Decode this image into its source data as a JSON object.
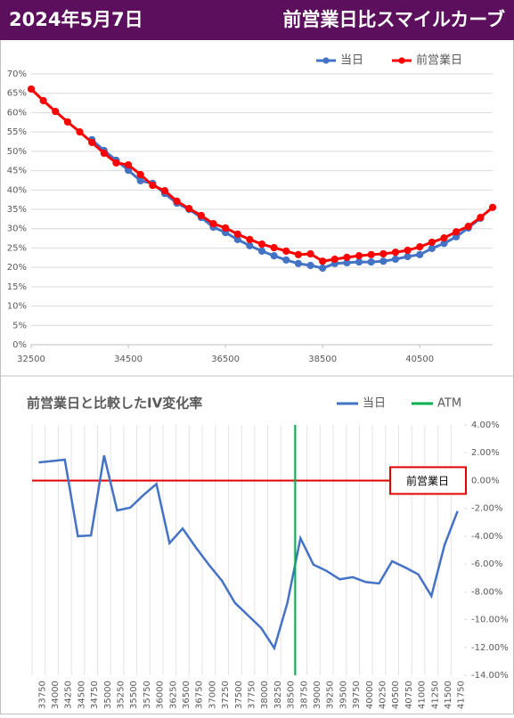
{
  "header": {
    "date": "2024年5月7日",
    "title": "前営業日比スマイルカーブ"
  },
  "chart_data": [
    {
      "type": "line",
      "markers": true,
      "grid": true,
      "x": [
        32500,
        32750,
        33000,
        33250,
        33500,
        33750,
        34000,
        34250,
        34500,
        34750,
        35000,
        35250,
        35500,
        35750,
        36000,
        36250,
        36500,
        36750,
        37000,
        37250,
        37500,
        37750,
        38000,
        38250,
        38500,
        38750,
        39000,
        39250,
        39500,
        39750,
        40000,
        40250,
        40500,
        40750,
        41000,
        41250,
        41500,
        41750,
        42000
      ],
      "series": [
        {
          "name": "当日",
          "color": "#4472c4",
          "values": [
            null,
            null,
            null,
            null,
            null,
            53.0,
            50.2,
            47.7,
            45.1,
            42.4,
            41.7,
            39.1,
            36.6,
            35.0,
            32.9,
            30.4,
            29.0,
            27.2,
            25.6,
            24.2,
            23.0,
            21.9,
            21.0,
            20.5,
            19.8,
            21.0,
            21.2,
            21.4,
            21.4,
            21.6,
            22.1,
            22.8,
            23.3,
            24.9,
            26.2,
            27.9,
            30.2,
            32.7,
            null
          ]
        },
        {
          "name": "前営業日",
          "color": "#ff0000",
          "values": [
            66.1,
            63.1,
            60.3,
            57.6,
            55.0,
            52.3,
            49.5,
            47.0,
            46.5,
            44.0,
            41.2,
            39.8,
            37.1,
            35.2,
            33.4,
            31.3,
            30.2,
            28.6,
            27.2,
            26.0,
            25.1,
            24.2,
            23.3,
            23.5,
            21.6,
            22.1,
            22.6,
            23.0,
            23.3,
            23.5,
            23.9,
            24.4,
            25.3,
            26.5,
            27.6,
            29.2,
            30.6,
            32.9,
            35.5
          ]
        }
      ],
      "xlim": [
        32500,
        42000
      ],
      "xticks": [
        32500,
        34500,
        36500,
        38500,
        40500
      ],
      "ylim": [
        0,
        70
      ],
      "yticks": [
        {
          "value": 0,
          "label": "0%"
        },
        {
          "value": 5,
          "label": "5%"
        },
        {
          "value": 10,
          "label": "10%"
        },
        {
          "value": 15,
          "label": "15%"
        },
        {
          "value": 20,
          "label": "20%"
        },
        {
          "value": 25,
          "label": "25%"
        },
        {
          "value": 30,
          "label": "30%"
        },
        {
          "value": 35,
          "label": "35%"
        },
        {
          "value": 40,
          "label": "40%"
        },
        {
          "value": 45,
          "label": "45%"
        },
        {
          "value": 50,
          "label": "50%"
        },
        {
          "value": 55,
          "label": "55%"
        },
        {
          "value": 60,
          "label": "60%"
        },
        {
          "value": 65,
          "label": "65%"
        },
        {
          "value": 70,
          "label": "70%"
        }
      ]
    },
    {
      "type": "line",
      "title": "前営業日と比較したIV変化率",
      "grid": true,
      "categories": [
        "33750",
        "34000",
        "34250",
        "34500",
        "34750",
        "35000",
        "35250",
        "35500",
        "35750",
        "36000",
        "36250",
        "36500",
        "36750",
        "37000",
        "37250",
        "37500",
        "37750",
        "38000",
        "38250",
        "38500",
        "38750",
        "39000",
        "39250",
        "39500",
        "39750",
        "40000",
        "40250",
        "40500",
        "40750",
        "41000",
        "41250",
        "41500",
        "41750"
      ],
      "series": [
        {
          "name": "当日",
          "color": "#4472c4",
          "values": [
            1.3,
            1.4,
            1.5,
            -4.0,
            -3.95,
            1.8,
            -2.15,
            -1.95,
            -1.05,
            -0.25,
            -4.5,
            -3.45,
            -4.8,
            -6.05,
            -7.2,
            -8.8,
            -9.7,
            -10.6,
            -12.05,
            -8.8,
            -4.15,
            -6.05,
            -6.5,
            -7.1,
            -6.95,
            -7.3,
            -7.4,
            -5.8,
            -6.25,
            -6.75,
            -8.3,
            -4.65,
            -2.2
          ]
        },
        {
          "name": "ATM",
          "color": "#00b050",
          "x": 38650
        }
      ],
      "reference_line": {
        "label": "前営業日",
        "value": 0,
        "color": "#e00000"
      },
      "ylim": [
        -14,
        4
      ],
      "yticks": [
        {
          "value": 4,
          "label": "4.00%"
        },
        {
          "value": 2,
          "label": "2.00%"
        },
        {
          "value": 0,
          "label": "0.00%"
        },
        {
          "value": -2,
          "label": "-2.00%"
        },
        {
          "value": -4,
          "label": "-4.00%"
        },
        {
          "value": -6,
          "label": "-6.00%"
        },
        {
          "value": -8,
          "label": "-8.00%"
        },
        {
          "value": -10,
          "label": "-10.00%"
        },
        {
          "value": -12,
          "label": "-12.00%"
        },
        {
          "value": -14,
          "label": "-14.00%"
        }
      ]
    }
  ]
}
